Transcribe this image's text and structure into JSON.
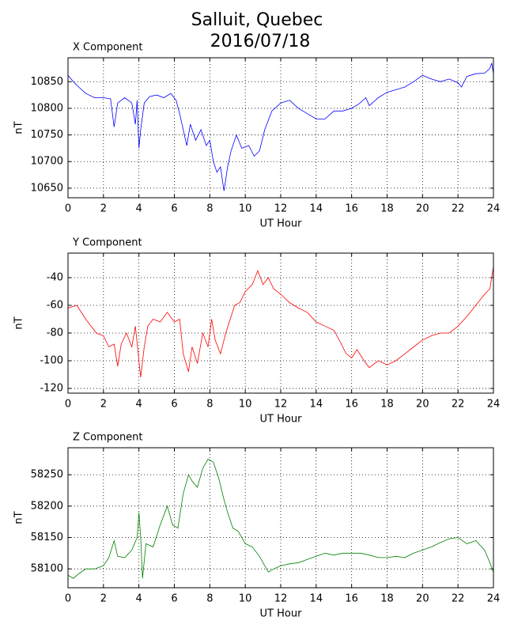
{
  "title": "Salluit, Quebec",
  "subtitle": "2016/07/18",
  "chart_data": [
    {
      "type": "line",
      "title": "X Component",
      "xlabel": "UT Hour",
      "ylabel": "nT",
      "grid": true,
      "xlim": [
        0,
        24
      ],
      "xticks": [
        0,
        2,
        4,
        6,
        8,
        10,
        12,
        14,
        16,
        18,
        20,
        22,
        24
      ],
      "ylim": [
        10632,
        10895
      ],
      "yticks": [
        10650,
        10700,
        10750,
        10800,
        10850
      ],
      "x": [
        0,
        0.3,
        0.6,
        1,
        1.5,
        2,
        2.4,
        2.6,
        2.8,
        3.2,
        3.6,
        3.8,
        3.9,
        4.0,
        4.1,
        4.3,
        4.6,
        5,
        5.4,
        5.8,
        6.1,
        6.3,
        6.5,
        6.7,
        6.9,
        7.2,
        7.5,
        7.8,
        8,
        8.2,
        8.4,
        8.6,
        8.8,
        9,
        9.2,
        9.5,
        9.8,
        10.2,
        10.5,
        10.8,
        11.1,
        11.5,
        12,
        12.5,
        13,
        13.5,
        14,
        14.5,
        15,
        15.5,
        16,
        16.4,
        16.8,
        17,
        17.5,
        18,
        18.5,
        19,
        19.5,
        20,
        20.5,
        21,
        21.5,
        22,
        22.2,
        22.5,
        23,
        23.5,
        23.8,
        23.9,
        24
      ],
      "series": [
        {
          "name": "X Component",
          "color": "#0000ff",
          "values": [
            10862,
            10850,
            10840,
            10828,
            10820,
            10820,
            10818,
            10765,
            10810,
            10820,
            10810,
            10770,
            10815,
            10725,
            10760,
            10810,
            10822,
            10825,
            10820,
            10828,
            10815,
            10790,
            10760,
            10730,
            10770,
            10740,
            10760,
            10730,
            10740,
            10700,
            10680,
            10690,
            10645,
            10690,
            10720,
            10750,
            10725,
            10730,
            10710,
            10720,
            10760,
            10795,
            10810,
            10815,
            10800,
            10790,
            10780,
            10780,
            10795,
            10795,
            10800,
            10808,
            10820,
            10805,
            10820,
            10830,
            10835,
            10840,
            10850,
            10862,
            10855,
            10850,
            10855,
            10848,
            10840,
            10860,
            10865,
            10866,
            10875,
            10885,
            10865
          ]
        }
      ]
    },
    {
      "type": "line",
      "title": "Y Component",
      "xlabel": "UT Hour",
      "ylabel": "nT",
      "grid": true,
      "xlim": [
        0,
        24
      ],
      "xticks": [
        0,
        2,
        4,
        6,
        8,
        10,
        12,
        14,
        16,
        18,
        20,
        22,
        24
      ],
      "ylim": [
        -123.4,
        -22.3
      ],
      "yticks": [
        -120,
        -100,
        -80,
        -60,
        -40
      ],
      "x": [
        0,
        0.5,
        1,
        1.3,
        1.6,
        2,
        2.3,
        2.6,
        2.8,
        3,
        3.3,
        3.6,
        3.8,
        4,
        4.1,
        4.3,
        4.5,
        4.8,
        5.2,
        5.6,
        6,
        6.3,
        6.5,
        6.8,
        7,
        7.3,
        7.6,
        7.9,
        8.1,
        8.3,
        8.6,
        8.9,
        9.1,
        9.4,
        9.7,
        10,
        10.4,
        10.7,
        11,
        11.3,
        11.6,
        12,
        12.5,
        13,
        13.5,
        14,
        14.5,
        15,
        15.3,
        15.7,
        16,
        16.3,
        16.7,
        17,
        17.5,
        18,
        18.5,
        19,
        19.5,
        20,
        20.5,
        21,
        21.5,
        22,
        22.5,
        23,
        23.5,
        23.8,
        24
      ],
      "series": [
        {
          "name": "Y Component",
          "color": "#ff0000",
          "values": [
            -62,
            -60,
            -70,
            -75,
            -80,
            -82,
            -90,
            -88,
            -104,
            -88,
            -80,
            -90,
            -75,
            -100,
            -112,
            -90,
            -75,
            -70,
            -72,
            -65,
            -72,
            -70,
            -95,
            -108,
            -90,
            -102,
            -80,
            -90,
            -70,
            -85,
            -95,
            -80,
            -72,
            -60,
            -58,
            -50,
            -45,
            -35,
            -45,
            -40,
            -48,
            -52,
            -58,
            -62,
            -65,
            -72,
            -75,
            -78,
            -85,
            -95,
            -98,
            -92,
            -100,
            -105,
            -100,
            -103,
            -100,
            -95,
            -90,
            -85,
            -82,
            -80,
            -80,
            -75,
            -68,
            -60,
            -52,
            -48,
            -32
          ]
        }
      ]
    },
    {
      "type": "line",
      "title": "Z Component",
      "xlabel": "UT Hour",
      "ylabel": "nT",
      "grid": true,
      "xlim": [
        0,
        24
      ],
      "xticks": [
        0,
        2,
        4,
        6,
        8,
        10,
        12,
        14,
        16,
        18,
        20,
        22,
        24
      ],
      "ylim": [
        58070,
        58293
      ],
      "yticks": [
        58100,
        58150,
        58200,
        58250
      ],
      "x": [
        0,
        0.3,
        0.6,
        1,
        1.5,
        2,
        2.3,
        2.6,
        2.8,
        3.2,
        3.6,
        3.9,
        4.0,
        4.1,
        4.2,
        4.4,
        4.8,
        5.2,
        5.6,
        5.9,
        6.2,
        6.5,
        6.8,
        7,
        7.3,
        7.6,
        7.9,
        8.2,
        8.5,
        8.8,
        9,
        9.3,
        9.6,
        10,
        10.4,
        10.8,
        11,
        11.3,
        11.6,
        12,
        12.5,
        13,
        13.5,
        14,
        14.5,
        15,
        15.5,
        16,
        16.5,
        17,
        17.5,
        18,
        18.5,
        19,
        19.5,
        20,
        20.5,
        21,
        21.5,
        22,
        22.5,
        23,
        23.5,
        23.8,
        24
      ],
      "series": [
        {
          "name": "Z Component",
          "color": "#008000",
          "values": [
            58090,
            58085,
            58092,
            58100,
            58100,
            58105,
            58118,
            58145,
            58120,
            58118,
            58130,
            58150,
            58190,
            58150,
            58085,
            58140,
            58135,
            58170,
            58200,
            58170,
            58165,
            58220,
            58250,
            58240,
            58230,
            58260,
            58275,
            58270,
            58245,
            58210,
            58190,
            58165,
            58160,
            58140,
            58135,
            58120,
            58110,
            58095,
            58100,
            58105,
            58108,
            58110,
            58115,
            58120,
            58125,
            58122,
            58125,
            58125,
            58125,
            58122,
            58118,
            58118,
            58120,
            58118,
            58125,
            58130,
            58135,
            58142,
            58148,
            58150,
            58140,
            58145,
            58130,
            58110,
            58095
          ]
        }
      ]
    }
  ]
}
